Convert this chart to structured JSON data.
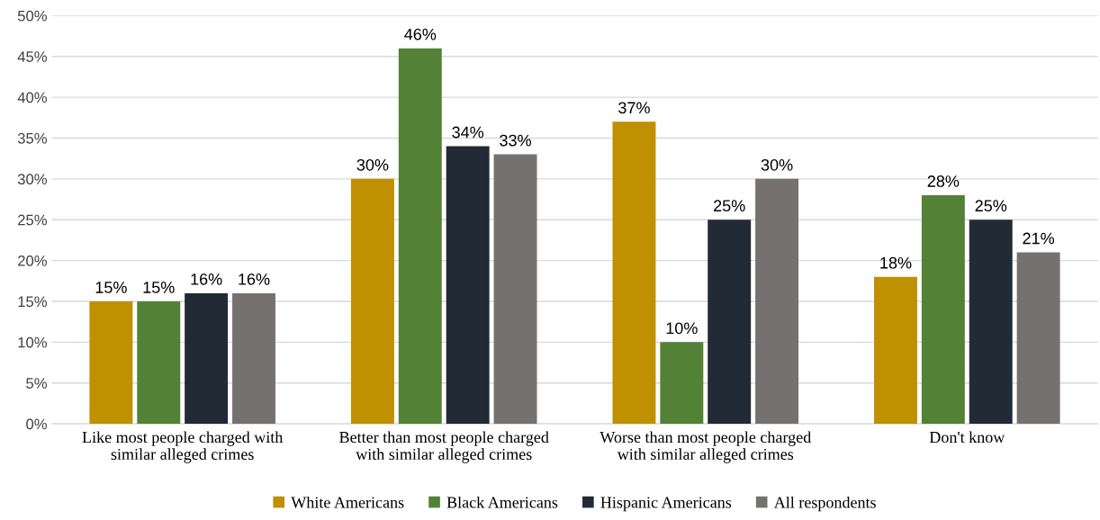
{
  "chart_data": {
    "type": "bar",
    "categories": [
      "Like most people charged with\nsimilar alleged crimes",
      "Better than most people charged\nwith similar alleged crimes",
      "Worse than most people charged\nwith similar alleged crimes",
      "Don't know"
    ],
    "series": [
      {
        "name": "White Americans",
        "color": "#bf9000",
        "values": [
          15,
          30,
          37,
          18
        ],
        "value_labels": [
          "15%",
          "30%",
          "37%",
          "18%"
        ]
      },
      {
        "name": "Black Americans",
        "color": "#538135",
        "values": [
          15,
          46,
          10,
          28
        ],
        "value_labels": [
          "15%",
          "46%",
          "10%",
          "28%"
        ]
      },
      {
        "name": "Hispanic Americans",
        "color": "#222a35",
        "values": [
          16,
          34,
          25,
          25
        ],
        "value_labels": [
          "16%",
          "34%",
          "25%",
          "25%"
        ]
      },
      {
        "name": "All respondents",
        "color": "#767171",
        "values": [
          16,
          33,
          30,
          21
        ],
        "value_labels": [
          "16%",
          "33%",
          "30%",
          "21%"
        ]
      }
    ],
    "ylim": [
      0,
      50
    ],
    "yticks": [
      {
        "value": 0,
        "label": "0%"
      },
      {
        "value": 5,
        "label": "5%"
      },
      {
        "value": 10,
        "label": "10%"
      },
      {
        "value": 15,
        "label": "15%"
      },
      {
        "value": 20,
        "label": "20%"
      },
      {
        "value": 25,
        "label": "25%"
      },
      {
        "value": 30,
        "label": "30%"
      },
      {
        "value": 35,
        "label": "35%"
      },
      {
        "value": 40,
        "label": "40%"
      },
      {
        "value": 45,
        "label": "45%"
      },
      {
        "value": 50,
        "label": "50%"
      }
    ],
    "grid": "y",
    "legend": "bottom"
  }
}
